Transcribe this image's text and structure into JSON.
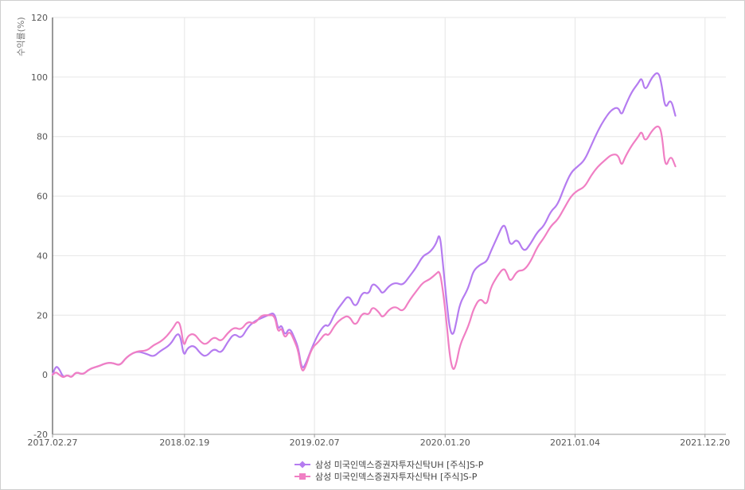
{
  "chart_data": {
    "type": "line",
    "title": "",
    "ylabel": "수익률(%)",
    "xlabel": "",
    "ylim": [
      -20,
      120
    ],
    "yticks": [
      -20,
      0,
      20,
      40,
      60,
      80,
      100,
      120
    ],
    "x_tick_labels": [
      "2017.02.27",
      "2018.02.19",
      "2019.02.07",
      "2020.01.20",
      "2021.01.04",
      "2021.12.20"
    ],
    "x_tick_frac": [
      0.0,
      0.196,
      0.389,
      0.583,
      0.776,
      0.969
    ],
    "grid": true,
    "legend_position": "bottom",
    "series": [
      {
        "name": "삼성 미국인덱스증권자투자신탁UH [주식]S-P",
        "color": "#b57cf0",
        "marker": "diamond",
        "points": [
          [
            0.0,
            0
          ],
          [
            0.005,
            3
          ],
          [
            0.01,
            2
          ],
          [
            0.016,
            -1
          ],
          [
            0.022,
            0
          ],
          [
            0.028,
            -1
          ],
          [
            0.035,
            1
          ],
          [
            0.045,
            0
          ],
          [
            0.055,
            2
          ],
          [
            0.07,
            3
          ],
          [
            0.08,
            4
          ],
          [
            0.09,
            4
          ],
          [
            0.1,
            3
          ],
          [
            0.11,
            6
          ],
          [
            0.125,
            8
          ],
          [
            0.14,
            7
          ],
          [
            0.15,
            6
          ],
          [
            0.16,
            8
          ],
          [
            0.175,
            10
          ],
          [
            0.185,
            14
          ],
          [
            0.19,
            13
          ],
          [
            0.195,
            6
          ],
          [
            0.2,
            9
          ],
          [
            0.21,
            10
          ],
          [
            0.22,
            7
          ],
          [
            0.228,
            6
          ],
          [
            0.24,
            9
          ],
          [
            0.25,
            7
          ],
          [
            0.26,
            11
          ],
          [
            0.27,
            14
          ],
          [
            0.28,
            12
          ],
          [
            0.29,
            16
          ],
          [
            0.3,
            18
          ],
          [
            0.31,
            19
          ],
          [
            0.32,
            20
          ],
          [
            0.33,
            21
          ],
          [
            0.335,
            15
          ],
          [
            0.34,
            17
          ],
          [
            0.345,
            13
          ],
          [
            0.352,
            16
          ],
          [
            0.36,
            12
          ],
          [
            0.365,
            9
          ],
          [
            0.37,
            2
          ],
          [
            0.375,
            3
          ],
          [
            0.385,
            9
          ],
          [
            0.395,
            14
          ],
          [
            0.405,
            17
          ],
          [
            0.41,
            16
          ],
          [
            0.42,
            21
          ],
          [
            0.43,
            24
          ],
          [
            0.44,
            27
          ],
          [
            0.45,
            22
          ],
          [
            0.46,
            28
          ],
          [
            0.47,
            27
          ],
          [
            0.475,
            31
          ],
          [
            0.485,
            29
          ],
          [
            0.49,
            27
          ],
          [
            0.5,
            30
          ],
          [
            0.51,
            31
          ],
          [
            0.52,
            30
          ],
          [
            0.53,
            33
          ],
          [
            0.54,
            36
          ],
          [
            0.55,
            40
          ],
          [
            0.56,
            41
          ],
          [
            0.57,
            44
          ],
          [
            0.575,
            48
          ],
          [
            0.58,
            37
          ],
          [
            0.585,
            25
          ],
          [
            0.59,
            15
          ],
          [
            0.595,
            13
          ],
          [
            0.6,
            18
          ],
          [
            0.605,
            24
          ],
          [
            0.615,
            28
          ],
          [
            0.62,
            31
          ],
          [
            0.625,
            35
          ],
          [
            0.635,
            37
          ],
          [
            0.645,
            38
          ],
          [
            0.65,
            41
          ],
          [
            0.66,
            46
          ],
          [
            0.67,
            51
          ],
          [
            0.675,
            48
          ],
          [
            0.68,
            43
          ],
          [
            0.69,
            46
          ],
          [
            0.7,
            41
          ],
          [
            0.71,
            44
          ],
          [
            0.72,
            48
          ],
          [
            0.73,
            50
          ],
          [
            0.74,
            55
          ],
          [
            0.75,
            57
          ],
          [
            0.76,
            63
          ],
          [
            0.77,
            68
          ],
          [
            0.78,
            70
          ],
          [
            0.79,
            72
          ],
          [
            0.8,
            77
          ],
          [
            0.81,
            82
          ],
          [
            0.82,
            86
          ],
          [
            0.83,
            89
          ],
          [
            0.84,
            90
          ],
          [
            0.845,
            87
          ],
          [
            0.85,
            90
          ],
          [
            0.86,
            95
          ],
          [
            0.87,
            98
          ],
          [
            0.875,
            100
          ],
          [
            0.88,
            95
          ],
          [
            0.89,
            100
          ],
          [
            0.9,
            102
          ],
          [
            0.905,
            97
          ],
          [
            0.91,
            89
          ],
          [
            0.918,
            93
          ],
          [
            0.925,
            87
          ]
        ]
      },
      {
        "name": "삼성 미국인덱스증권자투자신탁H [주식]S-P",
        "color": "#f07fc4",
        "marker": "square",
        "points": [
          [
            0.0,
            0
          ],
          [
            0.005,
            1
          ],
          [
            0.01,
            0
          ],
          [
            0.016,
            -1
          ],
          [
            0.022,
            0
          ],
          [
            0.028,
            -1
          ],
          [
            0.035,
            1
          ],
          [
            0.045,
            0
          ],
          [
            0.055,
            2
          ],
          [
            0.07,
            3
          ],
          [
            0.08,
            4
          ],
          [
            0.09,
            4
          ],
          [
            0.1,
            3
          ],
          [
            0.11,
            6
          ],
          [
            0.125,
            8
          ],
          [
            0.14,
            8
          ],
          [
            0.15,
            10
          ],
          [
            0.16,
            11
          ],
          [
            0.17,
            13
          ],
          [
            0.18,
            16
          ],
          [
            0.185,
            18
          ],
          [
            0.19,
            17
          ],
          [
            0.195,
            9
          ],
          [
            0.2,
            13
          ],
          [
            0.21,
            14
          ],
          [
            0.22,
            11
          ],
          [
            0.228,
            10
          ],
          [
            0.24,
            13
          ],
          [
            0.25,
            11
          ],
          [
            0.26,
            14
          ],
          [
            0.27,
            16
          ],
          [
            0.28,
            15
          ],
          [
            0.29,
            18
          ],
          [
            0.3,
            17
          ],
          [
            0.31,
            20
          ],
          [
            0.32,
            20
          ],
          [
            0.33,
            20
          ],
          [
            0.335,
            14
          ],
          [
            0.34,
            16
          ],
          [
            0.345,
            12
          ],
          [
            0.352,
            15
          ],
          [
            0.36,
            11
          ],
          [
            0.365,
            8
          ],
          [
            0.37,
            1
          ],
          [
            0.375,
            2
          ],
          [
            0.385,
            9
          ],
          [
            0.395,
            11
          ],
          [
            0.405,
            14
          ],
          [
            0.41,
            13
          ],
          [
            0.42,
            17
          ],
          [
            0.43,
            19
          ],
          [
            0.44,
            20
          ],
          [
            0.45,
            16
          ],
          [
            0.46,
            21
          ],
          [
            0.47,
            20
          ],
          [
            0.475,
            23
          ],
          [
            0.485,
            21
          ],
          [
            0.49,
            19
          ],
          [
            0.5,
            22
          ],
          [
            0.51,
            23
          ],
          [
            0.52,
            21
          ],
          [
            0.53,
            25
          ],
          [
            0.54,
            28
          ],
          [
            0.55,
            31
          ],
          [
            0.56,
            32
          ],
          [
            0.57,
            34
          ],
          [
            0.575,
            35
          ],
          [
            0.58,
            28
          ],
          [
            0.585,
            18
          ],
          [
            0.59,
            6
          ],
          [
            0.595,
            1
          ],
          [
            0.6,
            4
          ],
          [
            0.605,
            10
          ],
          [
            0.615,
            15
          ],
          [
            0.62,
            18
          ],
          [
            0.625,
            22
          ],
          [
            0.635,
            26
          ],
          [
            0.645,
            23
          ],
          [
            0.65,
            29
          ],
          [
            0.66,
            33
          ],
          [
            0.67,
            36
          ],
          [
            0.675,
            34
          ],
          [
            0.68,
            31
          ],
          [
            0.69,
            35
          ],
          [
            0.7,
            35
          ],
          [
            0.71,
            38
          ],
          [
            0.72,
            43
          ],
          [
            0.73,
            46
          ],
          [
            0.74,
            50
          ],
          [
            0.75,
            52
          ],
          [
            0.76,
            56
          ],
          [
            0.77,
            60
          ],
          [
            0.78,
            62
          ],
          [
            0.79,
            63
          ],
          [
            0.8,
            67
          ],
          [
            0.81,
            70
          ],
          [
            0.82,
            72
          ],
          [
            0.83,
            74
          ],
          [
            0.84,
            74
          ],
          [
            0.845,
            70
          ],
          [
            0.85,
            73
          ],
          [
            0.86,
            77
          ],
          [
            0.87,
            80
          ],
          [
            0.875,
            82
          ],
          [
            0.88,
            78
          ],
          [
            0.89,
            82
          ],
          [
            0.9,
            84
          ],
          [
            0.905,
            81
          ],
          [
            0.91,
            69
          ],
          [
            0.918,
            74
          ],
          [
            0.925,
            70
          ]
        ]
      }
    ]
  }
}
